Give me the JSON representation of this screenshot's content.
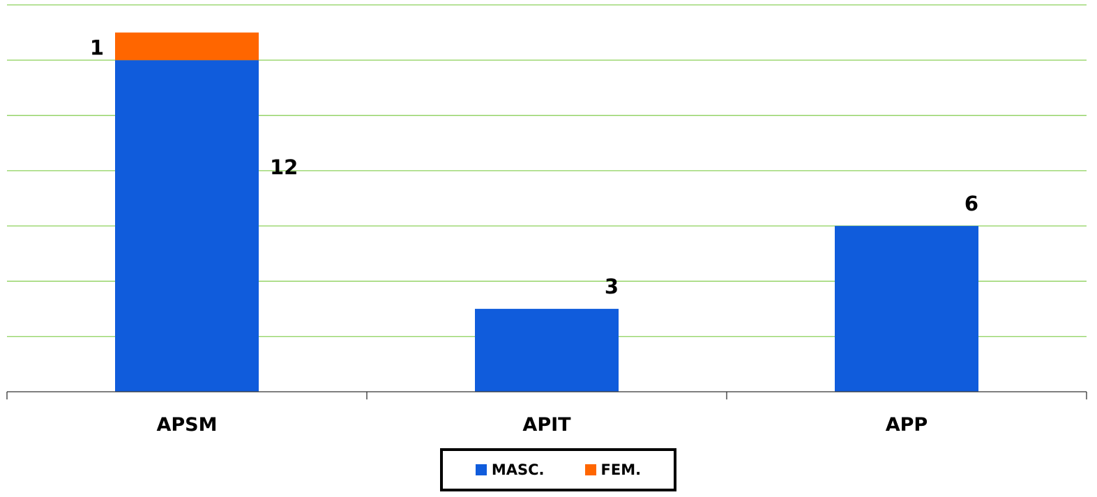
{
  "chart_data": {
    "type": "bar",
    "stacked": true,
    "categories": [
      "APSM",
      "APIT",
      "APP"
    ],
    "series": [
      {
        "name": "MASC.",
        "values": [
          12,
          3,
          6
        ],
        "color": "#105CDC"
      },
      {
        "name": "FEM.",
        "values": [
          1,
          0,
          0
        ],
        "color": "#FF6600"
      }
    ],
    "data_labels": [
      {
        "category": "APSM",
        "series": "FEM.",
        "text": "1"
      },
      {
        "category": "APSM",
        "series": "MASC.",
        "text": "12"
      },
      {
        "category": "APIT",
        "series": "MASC.",
        "text": "3"
      },
      {
        "category": "APP",
        "series": "MASC.",
        "text": "6"
      }
    ],
    "ylim": [
      0,
      14
    ],
    "gridlines": true,
    "grid_color": "#8CD05A",
    "legend_position": "bottom",
    "title": "",
    "xlabel": "",
    "ylabel": ""
  }
}
